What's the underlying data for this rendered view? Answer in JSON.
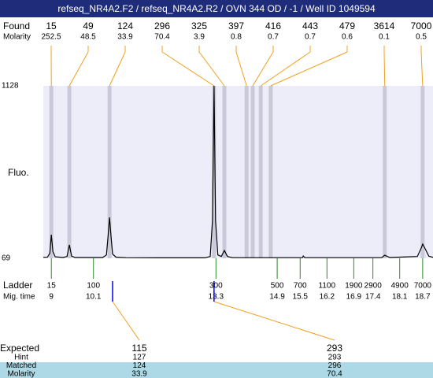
{
  "chart_data": {
    "type": "line",
    "title": "refseq_NR4A2.F2 / refseq_NR4A2.R2 / OVN 344 OD / -1 / Well ID 1049594",
    "y_label": "Fluo.",
    "xlim": [
      8.79,
      18.97
    ],
    "ylim": [
      69,
      1128
    ],
    "yticks": [
      69,
      1128
    ],
    "color": "#000000",
    "x": [
      8.79,
      8.9,
      8.96,
      9.0,
      9.04,
      9.1,
      9.31,
      9.41,
      9.47,
      9.53,
      9.62,
      10.34,
      10.44,
      10.48,
      10.52,
      10.56,
      10.6,
      10.69,
      10.95,
      11.77,
      13.01,
      13.15,
      13.21,
      13.25,
      13.29,
      13.35,
      13.44,
      13.52,
      13.6,
      13.73,
      15.56,
      15.58,
      15.62,
      17.63,
      17.71,
      17.84,
      18.56,
      18.66,
      18.7,
      18.76,
      18.86,
      18.97
    ],
    "values": [
      75,
      76,
      100,
      214,
      110,
      78,
      74,
      80,
      151,
      82,
      74,
      74,
      90,
      200,
      320,
      200,
      95,
      76,
      73,
      72,
      72,
      80,
      300,
      1128,
      300,
      90,
      80,
      117,
      80,
      73,
      73,
      83,
      73,
      73,
      88,
      74,
      80,
      130,
      156,
      130,
      82,
      75
    ],
    "found": {
      "label": "Found",
      "molarity_label": "Molarity",
      "sizes": [
        15,
        49,
        124,
        296,
        325,
        397,
        416,
        443,
        479,
        3614,
        7000
      ],
      "molarity": [
        252.5,
        48.5,
        33.9,
        70.4,
        3.9,
        0.8,
        0.7,
        0.7,
        0.6,
        0.1,
        0.5
      ],
      "times": [
        9.0,
        9.47,
        10.52,
        13.25,
        13.52,
        14.1,
        14.26,
        14.47,
        14.73,
        17.71,
        18.7
      ]
    },
    "ladder": {
      "label": "Ladder",
      "time_label": "Mig. time",
      "sizes": [
        15,
        100,
        300,
        500,
        700,
        1100,
        1900,
        2900,
        4900,
        7000
      ],
      "times": [
        9,
        10.1,
        13.3,
        14.9,
        15.5,
        16.2,
        16.9,
        17.4,
        18.1,
        18.7
      ]
    },
    "expected": {
      "label": "Expected",
      "sizes": [
        115,
        293
      ],
      "times": [
        10.6,
        13.25
      ]
    },
    "table": {
      "rows": [
        {
          "label": "Hint",
          "values": [
            127,
            293
          ]
        },
        {
          "label": "Matched",
          "values": [
            124,
            296
          ]
        },
        {
          "label": "Molarity",
          "values": [
            33.9,
            70.4
          ]
        }
      ]
    }
  }
}
